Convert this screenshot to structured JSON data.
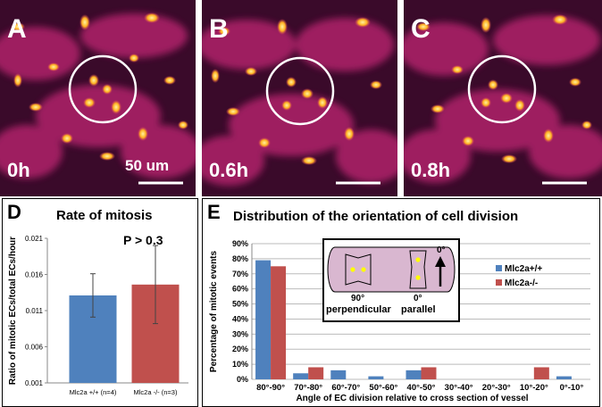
{
  "panels": {
    "A": {
      "letter": "A",
      "time": "0h",
      "scale_label": "50 um"
    },
    "B": {
      "letter": "B",
      "time": "0.6h"
    },
    "C": {
      "letter": "C",
      "time": "0.8h"
    }
  },
  "colors": {
    "blue": "#4f81bd",
    "red": "#c0504d",
    "micro_bg": "#3a0a2a",
    "micro_vessel": "#b0206a",
    "micro_cell": "#ffc020"
  },
  "chart_data": [
    {
      "type": "bar",
      "panel_letter": "D",
      "title": "Rate of mitosis",
      "ylabel": "Ratio of mitotic ECs/total ECs/hour",
      "annotation": "P > 0.3",
      "categories": [
        "Mlc2a +/+ (n=4)",
        "Mlc2a -/- (n=3)"
      ],
      "values": [
        0.0131,
        0.0146
      ],
      "errors": [
        0.003,
        0.0054
      ],
      "yticks": [
        "0.001",
        "0.006",
        "0.011",
        "0.016",
        "0.021"
      ],
      "ylim": [
        0.001,
        0.021
      ]
    },
    {
      "type": "bar",
      "panel_letter": "E",
      "title": "Distribution of the orientation of cell division",
      "ylabel": "Percentage of mitotic events",
      "xlabel": "Angle of EC division relative to cross section of vessel",
      "categories": [
        "80°-90°",
        "70°-80°",
        "60°-70°",
        "50°-60°",
        "40°-50°",
        "30°-40°",
        "20°-30°",
        "10°-20°",
        "0°-10°"
      ],
      "series": [
        {
          "name": "Mlc2a+/+",
          "values": [
            79,
            4,
            6,
            2,
            6,
            0,
            0,
            0,
            2
          ]
        },
        {
          "name": "Mlc2a-/-",
          "values": [
            75,
            8,
            0,
            0,
            8,
            0,
            0,
            8,
            0
          ]
        }
      ],
      "yticks": [
        "0%",
        "10%",
        "20%",
        "30%",
        "40%",
        "50%",
        "60%",
        "70%",
        "80%",
        "90%"
      ],
      "ylim": [
        0,
        90
      ],
      "inset": {
        "left_angle": "90°",
        "left_label": "perpendicular",
        "right_angle": "0°",
        "right_label": "parallel",
        "arrow_label": "0°"
      }
    }
  ]
}
